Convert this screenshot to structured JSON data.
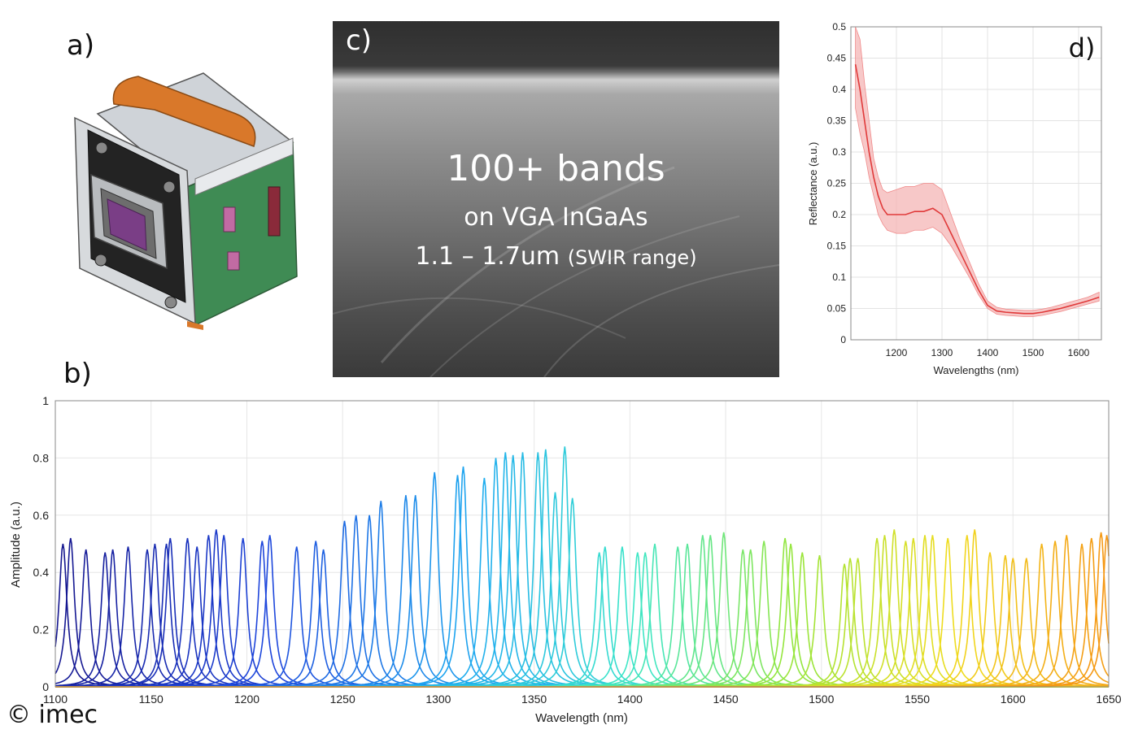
{
  "labels": {
    "a": "a)",
    "b": "b)",
    "c": "c)",
    "d": "d)"
  },
  "overlay": {
    "line1": "100+ bands",
    "line2": "on VGA InGaAs",
    "line3_main": "1.1 – 1.7um",
    "line3_small": "(SWIR range)"
  },
  "copyright": "© imec",
  "colors": {
    "reflectance": "#e03a3a",
    "band_fill": "#f4b6b6"
  },
  "chart_data": [
    {
      "id": "d",
      "type": "line",
      "xlabel": "Wavelengths (nm)",
      "ylabel": "Reflectance (a.u.)",
      "xlim": [
        1100,
        1650
      ],
      "ylim": [
        0,
        0.5
      ],
      "xticks": [
        1200,
        1300,
        1400,
        1500,
        1600
      ],
      "yticks": [
        0,
        0.05,
        0.1,
        0.15,
        0.2,
        0.25,
        0.3,
        0.35,
        0.4,
        0.45,
        0.5
      ],
      "grid": true,
      "series": [
        {
          "x": [
            1110,
            1120,
            1130,
            1140,
            1150,
            1160,
            1170,
            1180,
            1200,
            1220,
            1240,
            1260,
            1280,
            1300,
            1320,
            1340,
            1360,
            1380,
            1400,
            1420,
            1440,
            1460,
            1480,
            1500,
            1520,
            1540,
            1560,
            1580,
            1600,
            1620,
            1645
          ],
          "y": [
            0.44,
            0.4,
            0.35,
            0.3,
            0.26,
            0.23,
            0.21,
            0.2,
            0.2,
            0.2,
            0.205,
            0.205,
            0.21,
            0.2,
            0.17,
            0.14,
            0.11,
            0.08,
            0.055,
            0.046,
            0.044,
            0.043,
            0.042,
            0.042,
            0.044,
            0.047,
            0.05,
            0.054,
            0.058,
            0.062,
            0.068
          ],
          "lower": [
            0.37,
            0.33,
            0.3,
            0.26,
            0.23,
            0.2,
            0.185,
            0.175,
            0.17,
            0.17,
            0.175,
            0.175,
            0.18,
            0.17,
            0.15,
            0.125,
            0.1,
            0.072,
            0.05,
            0.041,
            0.039,
            0.038,
            0.037,
            0.037,
            0.039,
            0.042,
            0.045,
            0.049,
            0.053,
            0.057,
            0.062
          ],
          "upper": [
            0.5,
            0.48,
            0.41,
            0.35,
            0.29,
            0.26,
            0.24,
            0.235,
            0.24,
            0.245,
            0.245,
            0.25,
            0.25,
            0.24,
            0.2,
            0.16,
            0.125,
            0.09,
            0.062,
            0.052,
            0.049,
            0.048,
            0.047,
            0.047,
            0.049,
            0.052,
            0.056,
            0.06,
            0.064,
            0.068,
            0.076
          ]
        }
      ]
    },
    {
      "id": "b",
      "type": "line",
      "xlabel": "Wavelength (nm)",
      "ylabel": "Amplitude (a.u.)",
      "xlim": [
        1100,
        1650
      ],
      "ylim": [
        0,
        1
      ],
      "xticks": [
        1100,
        1150,
        1200,
        1250,
        1300,
        1350,
        1400,
        1450,
        1500,
        1550,
        1600,
        1650
      ],
      "yticks": [
        0,
        0.2,
        0.4,
        0.6,
        0.8,
        1
      ],
      "grid": true,
      "peak_width_nm": 2.5,
      "peaks_x": [
        1104,
        1108,
        1116,
        1126,
        1130,
        1138,
        1148,
        1152,
        1158,
        1160,
        1169,
        1174,
        1180,
        1184,
        1188,
        1198,
        1208,
        1212,
        1226,
        1236,
        1240,
        1251,
        1257,
        1264,
        1270,
        1283,
        1288,
        1298,
        1310,
        1313,
        1324,
        1330,
        1335,
        1339,
        1344,
        1352,
        1356,
        1361,
        1366,
        1370,
        1384,
        1387,
        1396,
        1404,
        1408,
        1413,
        1425,
        1430,
        1438,
        1442,
        1449,
        1459,
        1463,
        1470,
        1481,
        1484,
        1490,
        1499,
        1512,
        1515,
        1519,
        1529,
        1533,
        1538,
        1544,
        1548,
        1554,
        1558,
        1566,
        1576,
        1580,
        1588,
        1596,
        1600,
        1607,
        1615,
        1622,
        1628,
        1636,
        1641,
        1646,
        1649
      ],
      "peaks_y": [
        0.5,
        0.52,
        0.48,
        0.47,
        0.48,
        0.49,
        0.48,
        0.5,
        0.5,
        0.52,
        0.52,
        0.49,
        0.53,
        0.55,
        0.53,
        0.52,
        0.51,
        0.53,
        0.49,
        0.51,
        0.48,
        0.58,
        0.6,
        0.6,
        0.65,
        0.67,
        0.67,
        0.75,
        0.74,
        0.77,
        0.73,
        0.8,
        0.82,
        0.81,
        0.82,
        0.82,
        0.83,
        0.68,
        0.84,
        0.66,
        0.47,
        0.49,
        0.49,
        0.47,
        0.47,
        0.5,
        0.49,
        0.5,
        0.53,
        0.53,
        0.54,
        0.48,
        0.48,
        0.51,
        0.52,
        0.5,
        0.47,
        0.46,
        0.43,
        0.45,
        0.45,
        0.52,
        0.53,
        0.55,
        0.51,
        0.52,
        0.53,
        0.53,
        0.52,
        0.53,
        0.55,
        0.47,
        0.46,
        0.45,
        0.45,
        0.5,
        0.51,
        0.53,
        0.5,
        0.52,
        0.54,
        0.53
      ]
    }
  ]
}
